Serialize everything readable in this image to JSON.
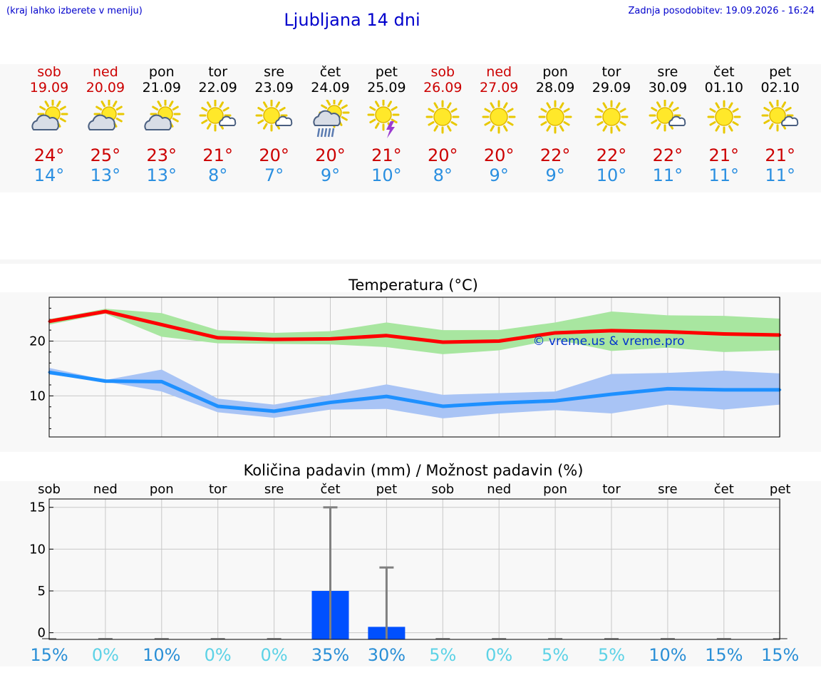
{
  "header": {
    "note": "(kraj lahko izberete v meniju)",
    "title": "Ljubljana 14 dni",
    "updated": "Zadnja posodobitev: 19.09.2026 - 16:24"
  },
  "days": [
    {
      "name": "sob",
      "date": "19.09",
      "weekend": true,
      "icon": "partly-cloudy-icon",
      "tmax": "24°",
      "tmin": "14°"
    },
    {
      "name": "ned",
      "date": "20.09",
      "weekend": true,
      "icon": "partly-cloudy-icon",
      "tmax": "25°",
      "tmin": "13°"
    },
    {
      "name": "pon",
      "date": "21.09",
      "weekend": false,
      "icon": "partly-cloudy-icon",
      "tmax": "23°",
      "tmin": "13°"
    },
    {
      "name": "tor",
      "date": "22.09",
      "weekend": false,
      "icon": "mostly-sunny-icon",
      "tmax": "21°",
      "tmin": "8°"
    },
    {
      "name": "sre",
      "date": "23.09",
      "weekend": false,
      "icon": "mostly-sunny-icon",
      "tmax": "20°",
      "tmin": "7°"
    },
    {
      "name": "čet",
      "date": "24.09",
      "weekend": false,
      "icon": "rain-icon",
      "tmax": "20°",
      "tmin": "9°"
    },
    {
      "name": "pet",
      "date": "25.09",
      "weekend": false,
      "icon": "thunderstorm-icon",
      "tmax": "21°",
      "tmin": "10°"
    },
    {
      "name": "sob",
      "date": "26.09",
      "weekend": true,
      "icon": "sunny-icon",
      "tmax": "20°",
      "tmin": "8°"
    },
    {
      "name": "ned",
      "date": "27.09",
      "weekend": true,
      "icon": "sunny-icon",
      "tmax": "20°",
      "tmin": "9°"
    },
    {
      "name": "pon",
      "date": "28.09",
      "weekend": false,
      "icon": "sunny-icon",
      "tmax": "22°",
      "tmin": "9°"
    },
    {
      "name": "tor",
      "date": "29.09",
      "weekend": false,
      "icon": "sunny-icon",
      "tmax": "22°",
      "tmin": "10°"
    },
    {
      "name": "sre",
      "date": "30.09",
      "weekend": false,
      "icon": "mostly-sunny-icon",
      "tmax": "22°",
      "tmin": "11°"
    },
    {
      "name": "čet",
      "date": "01.10",
      "weekend": false,
      "icon": "sunny-icon",
      "tmax": "21°",
      "tmin": "11°"
    },
    {
      "name": "pet",
      "date": "02.10",
      "weekend": false,
      "icon": "mostly-sunny-icon",
      "tmax": "21°",
      "tmin": "11°"
    }
  ],
  "colors": {
    "weekend": "#cc0000",
    "tmax": "#cc0000",
    "tmin": "#2a8fe0",
    "tmax_line": "#ff0000",
    "tmax_band": "#a8e6a0",
    "tmin_line": "#1e90ff",
    "tmin_band": "#a9c4f5",
    "precip_bar": "#0050ff",
    "error_bar": "#808080",
    "prob_high": "#2a8fd6",
    "prob_low": "#5cd2e6"
  },
  "watermark": "© vreme.us & vreme.pro",
  "chart_data": [
    {
      "type": "line",
      "title": "Temperatura (°C)",
      "categories": [
        "19.09",
        "20.09",
        "21.09",
        "22.09",
        "23.09",
        "24.09",
        "25.09",
        "26.09",
        "27.09",
        "28.09",
        "29.09",
        "30.09",
        "01.10",
        "02.10"
      ],
      "ylim": [
        2.5,
        28
      ],
      "yticks": [
        10,
        20
      ],
      "grid": true,
      "series": [
        {
          "values": [
            23.6,
            25.4,
            23.0,
            20.6,
            20.3,
            20.4,
            21.0,
            19.8,
            20.0,
            21.5,
            21.9,
            21.7,
            21.3,
            21.1
          ],
          "band_low": [
            23.0,
            25.0,
            20.8,
            19.6,
            19.5,
            19.4,
            18.9,
            17.6,
            18.3,
            20.3,
            18.2,
            18.8,
            18.0,
            18.3
          ],
          "band_high": [
            24.0,
            25.9,
            25.1,
            22.0,
            21.5,
            21.8,
            23.4,
            22.0,
            22.0,
            23.4,
            25.4,
            24.7,
            24.6,
            24.1
          ]
        },
        {
          "values": [
            14.3,
            12.7,
            12.6,
            8.1,
            7.2,
            8.8,
            9.9,
            8.1,
            8.7,
            9.1,
            10.3,
            11.3,
            11.1,
            11.1
          ],
          "band_low": [
            13.9,
            12.6,
            10.8,
            7.0,
            6.0,
            7.5,
            7.6,
            5.9,
            6.8,
            7.4,
            6.8,
            8.4,
            7.5,
            8.4
          ],
          "band_high": [
            15.1,
            12.9,
            14.8,
            9.5,
            8.4,
            10.2,
            12.1,
            10.2,
            10.5,
            10.8,
            14.0,
            14.2,
            14.6,
            14.1
          ]
        }
      ]
    },
    {
      "type": "bar",
      "title": "Količina padavin (mm) / Možnost padavin (%)",
      "categories": [
        "sob",
        "ned",
        "pon",
        "tor",
        "sre",
        "čet",
        "pet",
        "sob",
        "ned",
        "pon",
        "tor",
        "sre",
        "čet",
        "pet"
      ],
      "ylim": [
        -0.8,
        16
      ],
      "yticks": [
        0,
        5,
        10,
        15
      ],
      "grid": true,
      "values": [
        0,
        0,
        0,
        0,
        0,
        5.0,
        0.7,
        0,
        0,
        0,
        0,
        0,
        0,
        0
      ],
      "error_max": [
        0,
        0,
        0,
        0,
        0,
        15.0,
        7.8,
        0,
        0,
        0,
        0,
        0,
        0,
        0
      ],
      "probability": [
        "15%",
        "0%",
        "10%",
        "0%",
        "0%",
        "35%",
        "30%",
        "5%",
        "0%",
        "5%",
        "5%",
        "10%",
        "15%",
        "15%"
      ]
    }
  ]
}
